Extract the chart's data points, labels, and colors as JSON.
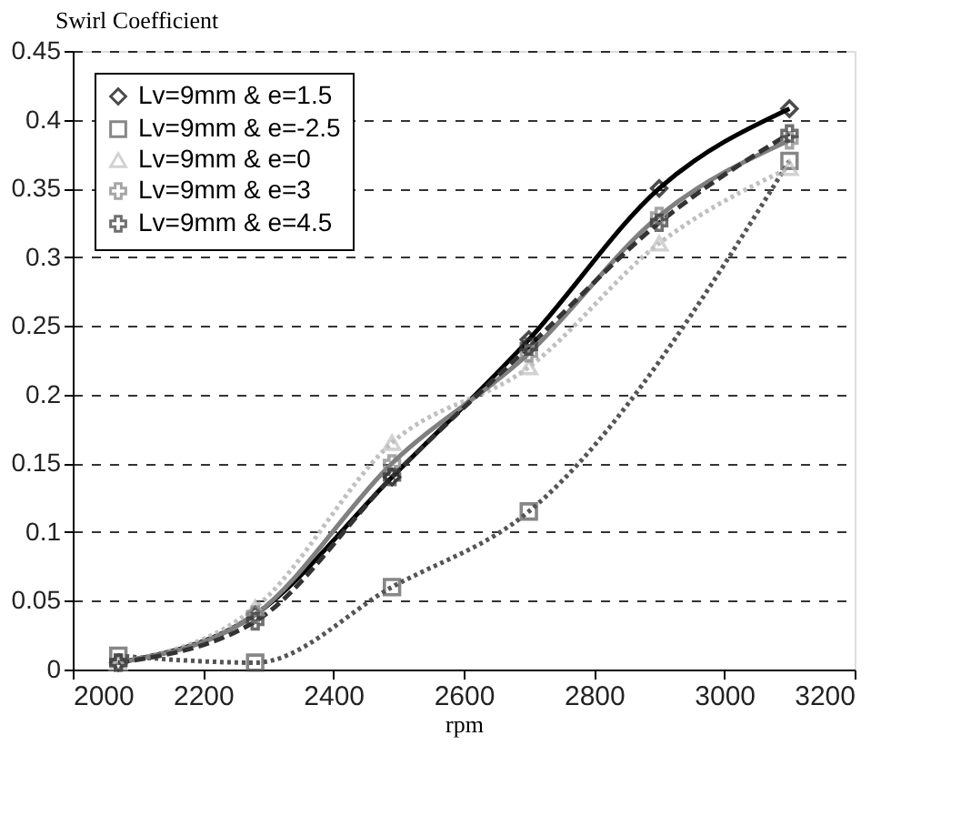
{
  "chart_data": {
    "type": "line",
    "xlabel": "rpm",
    "ylabel": "Swirl Coefficient",
    "x": [
      2070,
      2280,
      2490,
      2700,
      2900,
      3100
    ],
    "series": [
      {
        "name": "Lv=9mm & e=1.5",
        "color": "#000000",
        "marker": "diamond",
        "line_style": "solid",
        "values": [
          0.005,
          0.04,
          0.14,
          0.24,
          0.35,
          0.408
        ]
      },
      {
        "name": "Lv=9mm & e=-2.5",
        "color": "#555555",
        "marker": "square",
        "line_style": "dotted",
        "values": [
          0.01,
          0.005,
          0.06,
          0.115,
          null,
          0.37
        ]
      },
      {
        "name": "Lv=9mm & e=0",
        "color": "#c0c0c0",
        "marker": "triangle",
        "line_style": "dotted",
        "values": [
          0.005,
          0.045,
          0.165,
          0.22,
          0.31,
          0.365
        ]
      },
      {
        "name": "Lv=9mm & e=3",
        "color": "#808080",
        "marker": "cross",
        "line_style": "solid",
        "values": [
          0.005,
          0.04,
          0.15,
          0.23,
          0.33,
          0.385
        ]
      },
      {
        "name": "Lv=9mm & e=4.5",
        "color": "#333333",
        "marker": "cross",
        "line_style": "dashed",
        "values": [
          0.005,
          0.035,
          0.14,
          0.235,
          0.325,
          0.39
        ]
      }
    ],
    "xlim": [
      2000,
      3200
    ],
    "xticks": [
      2000,
      2200,
      2400,
      2600,
      2800,
      3000,
      3200
    ],
    "ylim": [
      0,
      0.45
    ],
    "yticks": [
      0,
      0.05,
      0.1,
      0.15,
      0.2,
      0.25,
      0.3,
      0.35,
      0.4,
      0.45
    ],
    "grid": "y",
    "legend": "top left"
  }
}
